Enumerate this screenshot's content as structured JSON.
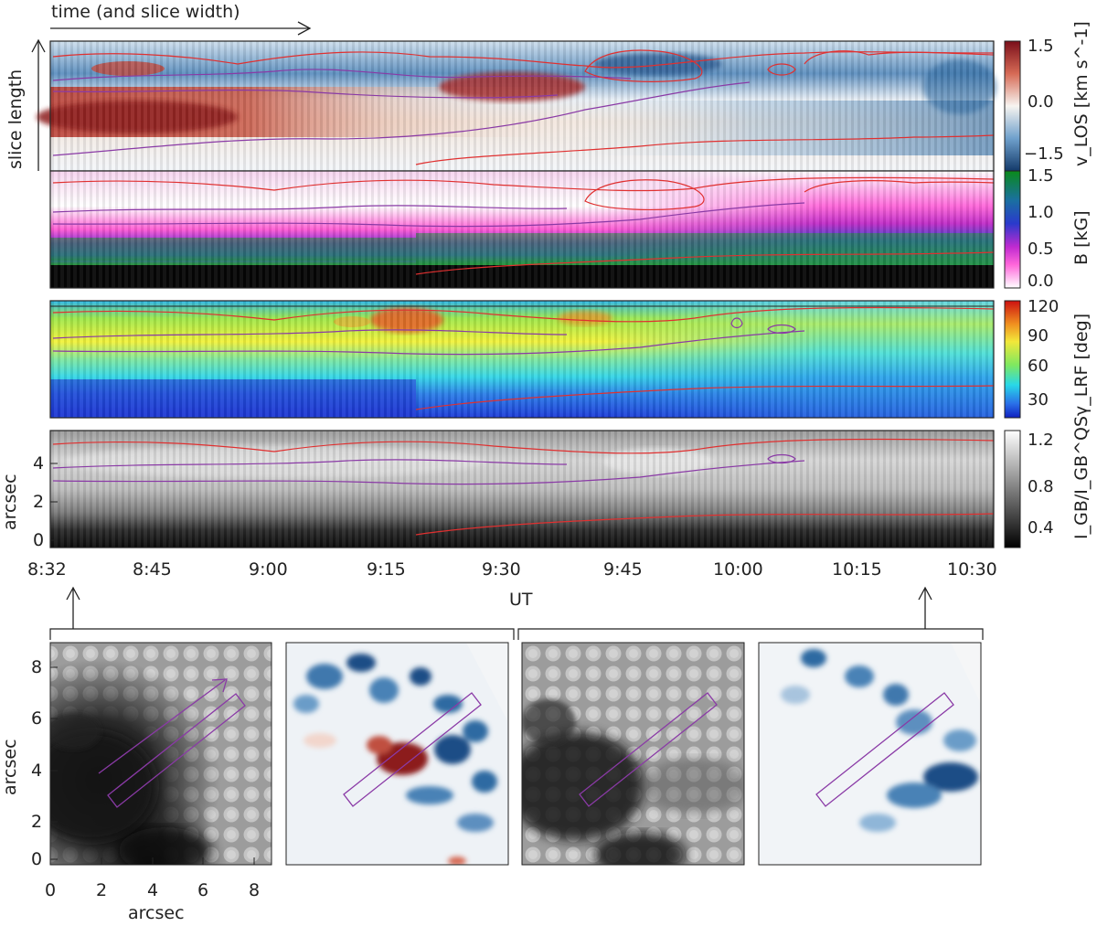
{
  "arrow_time_label": "time (and slice width)",
  "arrow_slice_label": "slice length",
  "top_panels": {
    "x_axis_label": "UT",
    "x_ticks": [
      "8:32",
      "8:45",
      "9:00",
      "9:15",
      "9:30",
      "9:45",
      "10:00",
      "10:15",
      "10:30"
    ],
    "y_axis_label": "arcsec",
    "y_ticks": [
      "0",
      "2",
      "4"
    ],
    "panels": [
      {
        "name": "vlos",
        "cb_ticks": [
          "1.5",
          "0.0",
          "−1.5"
        ],
        "cb_label": "v_LOS [km s^-1]",
        "colors": {
          "pos": "#8c1a1a",
          "zero": "#f7f4f0",
          "neg": "#1f4e86"
        }
      },
      {
        "name": "bfield",
        "cb_ticks": [
          "1.5",
          "1.0",
          "0.5",
          "0.0"
        ],
        "cb_label": "B [kG]",
        "colors": {
          "c0": "#ffffff",
          "c1": "#ff33cc",
          "c2": "#3333cc",
          "c3": "#1aa31a"
        }
      },
      {
        "name": "gamma",
        "cb_ticks": [
          "120",
          "90",
          "60",
          "30"
        ],
        "cb_label": "γ_LRF [deg]"
      },
      {
        "name": "intensity",
        "cb_ticks": [
          "1.2",
          "0.8",
          "0.4"
        ],
        "cb_label": "I_GB/I_GB^QS"
      }
    ]
  },
  "bottom_panels": {
    "x_axis_label": "arcsec",
    "x_ticks": [
      "0",
      "2",
      "4",
      "6",
      "8"
    ],
    "y_axis_label": "arcsec",
    "y_ticks": [
      "0",
      "2",
      "4",
      "6",
      "8"
    ]
  },
  "contour_colors": {
    "red": "#e03030",
    "purple": "#8a3aa6"
  },
  "chart_data": [
    {
      "type": "heatmap",
      "name": "vlos",
      "x_range": [
        "8:32",
        "10:30"
      ],
      "y_range": [
        0,
        5
      ],
      "color_range": [
        -1.5,
        1.5
      ],
      "xlabel": "UT",
      "ylabel": "arcsec"
    },
    {
      "type": "heatmap",
      "name": "B",
      "x_range": [
        "8:32",
        "10:30"
      ],
      "y_range": [
        0,
        5
      ],
      "color_range": [
        0.0,
        1.5
      ]
    },
    {
      "type": "heatmap",
      "name": "gamma_LRF",
      "x_range": [
        "8:32",
        "10:30"
      ],
      "y_range": [
        0,
        5
      ],
      "color_range": [
        30,
        120
      ]
    },
    {
      "type": "heatmap",
      "name": "intensity",
      "x_range": [
        "8:32",
        "10:30"
      ],
      "y_range": [
        0,
        5
      ],
      "color_range": [
        0.4,
        1.2
      ]
    },
    {
      "type": "heatmap",
      "name": "continuum map 8:32",
      "x_range": [
        0,
        8.5
      ],
      "y_range": [
        0,
        8.5
      ]
    },
    {
      "type": "heatmap",
      "name": "vlos map 8:32",
      "x_range": [
        0,
        8.5
      ],
      "y_range": [
        0,
        8.5
      ]
    },
    {
      "type": "heatmap",
      "name": "continuum map 10:30",
      "x_range": [
        0,
        8.5
      ],
      "y_range": [
        0,
        8.5
      ]
    },
    {
      "type": "heatmap",
      "name": "vlos map 10:30",
      "x_range": [
        0,
        8.5
      ],
      "y_range": [
        0,
        8.5
      ]
    }
  ]
}
